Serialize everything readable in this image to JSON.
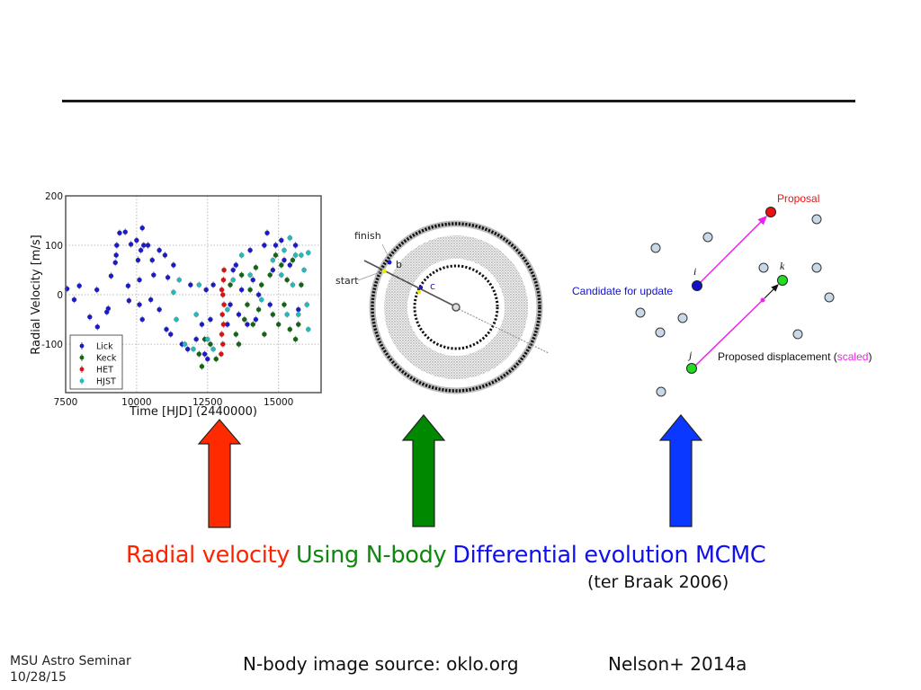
{
  "slide": {
    "caption": [
      {
        "text": "Radial velocity",
        "color": "#ff2200"
      },
      {
        "text": "Using N-body",
        "color": "#108810"
      },
      {
        "text": "Differential evolution MCMC",
        "color": "#1010ee"
      }
    ],
    "citation": "(ter Braak 2006)",
    "footer": {
      "venue_line1": "MSU Astro Seminar",
      "venue_line2": "10/28/15",
      "image_source": "N-body image source: oklo.org",
      "reference": "Nelson+ 2014a"
    },
    "arrows": [
      {
        "name": "radial-velocity",
        "color": "#ff2a00"
      },
      {
        "name": "n-body",
        "color": "#008800"
      },
      {
        "name": "mcmc",
        "color": "#0a38ff"
      }
    ]
  },
  "chart_data": {
    "type": "scatter",
    "title": "",
    "xlabel": "Time [HJD] (2440000)",
    "ylabel": "Radial Velocity [m/s]",
    "xlim": [
      7500,
      16500
    ],
    "ylim": [
      -198,
      200
    ],
    "xticks": [
      "7500",
      "10000",
      "12500",
      "15000"
    ],
    "yticks": [
      "200",
      "100",
      "0",
      "-100"
    ],
    "grid": true,
    "legend_position": "lower-left",
    "series": [
      {
        "name": "Lick",
        "color": "#1a1acc",
        "points": [
          [
            7550,
            12
          ],
          [
            7800,
            -10
          ],
          [
            7980,
            18
          ],
          [
            8350,
            -45
          ],
          [
            8600,
            10
          ],
          [
            8620,
            -65
          ],
          [
            9000,
            -28
          ],
          [
            8950,
            -35
          ],
          [
            9100,
            38
          ],
          [
            9250,
            65
          ],
          [
            9280,
            80
          ],
          [
            9300,
            100
          ],
          [
            9400,
            125
          ],
          [
            9600,
            127
          ],
          [
            9700,
            18
          ],
          [
            9730,
            -12
          ],
          [
            9800,
            102
          ],
          [
            10000,
            110
          ],
          [
            10050,
            70
          ],
          [
            10100,
            30
          ],
          [
            10100,
            -20
          ],
          [
            10150,
            90
          ],
          [
            10200,
            135
          ],
          [
            10200,
            -50
          ],
          [
            10250,
            100
          ],
          [
            10400,
            100
          ],
          [
            10500,
            -10
          ],
          [
            10550,
            70
          ],
          [
            10600,
            40
          ],
          [
            10800,
            90
          ],
          [
            10800,
            -30
          ],
          [
            11000,
            80
          ],
          [
            11050,
            -70
          ],
          [
            11100,
            35
          ],
          [
            11200,
            -80
          ],
          [
            11300,
            60
          ],
          [
            11600,
            -100
          ],
          [
            11800,
            -110
          ],
          [
            11900,
            20
          ],
          [
            12100,
            -90
          ],
          [
            12300,
            -60
          ],
          [
            12400,
            -120
          ],
          [
            12450,
            10
          ],
          [
            12500,
            -130
          ],
          [
            12600,
            -50
          ],
          [
            12700,
            20
          ],
          [
            13200,
            -60
          ],
          [
            13300,
            -20
          ],
          [
            13400,
            50
          ],
          [
            13500,
            60
          ],
          [
            13600,
            -40
          ],
          [
            13700,
            10
          ],
          [
            13900,
            -60
          ],
          [
            14000,
            90
          ],
          [
            14100,
            30
          ],
          [
            14200,
            -50
          ],
          [
            14300,
            0
          ],
          [
            14500,
            100
          ],
          [
            14600,
            125
          ],
          [
            14700,
            -20
          ],
          [
            14800,
            50
          ],
          [
            14900,
            100
          ],
          [
            15100,
            110
          ],
          [
            15200,
            70
          ],
          [
            15400,
            60
          ],
          [
            15600,
            100
          ],
          [
            15700,
            -30
          ]
        ]
      },
      {
        "name": "Keck",
        "color": "#116611",
        "points": [
          [
            12200,
            -120
          ],
          [
            12300,
            -145
          ],
          [
            12400,
            -90
          ],
          [
            12600,
            -100
          ],
          [
            12800,
            -130
          ],
          [
            13300,
            20
          ],
          [
            13500,
            -80
          ],
          [
            13600,
            -100
          ],
          [
            13700,
            40
          ],
          [
            13800,
            -50
          ],
          [
            13900,
            -20
          ],
          [
            14000,
            10
          ],
          [
            14100,
            -60
          ],
          [
            14200,
            55
          ],
          [
            14300,
            -30
          ],
          [
            14400,
            20
          ],
          [
            14500,
            -80
          ],
          [
            14700,
            40
          ],
          [
            14800,
            -40
          ],
          [
            14900,
            80
          ],
          [
            15000,
            -60
          ],
          [
            15100,
            60
          ],
          [
            15200,
            -20
          ],
          [
            15300,
            30
          ],
          [
            15400,
            -70
          ],
          [
            15500,
            70
          ],
          [
            15600,
            -90
          ],
          [
            15700,
            -60
          ],
          [
            15800,
            20
          ]
        ]
      },
      {
        "name": "HET",
        "color": "#dd1111",
        "points": [
          [
            12980,
            -120
          ],
          [
            13000,
            -80
          ],
          [
            13020,
            -40
          ],
          [
            13040,
            0
          ],
          [
            13060,
            30
          ],
          [
            13080,
            50
          ],
          [
            13000,
            10
          ],
          [
            13040,
            -100
          ],
          [
            13060,
            -60
          ],
          [
            13080,
            -20
          ]
        ]
      },
      {
        "name": "HJST",
        "color": "#22bbbb",
        "points": [
          [
            11300,
            5
          ],
          [
            11400,
            -50
          ],
          [
            11500,
            30
          ],
          [
            11700,
            -100
          ],
          [
            12000,
            -110
          ],
          [
            12100,
            -40
          ],
          [
            12200,
            20
          ],
          [
            12500,
            -90
          ],
          [
            12700,
            -110
          ],
          [
            13200,
            -30
          ],
          [
            13400,
            30
          ],
          [
            13700,
            80
          ],
          [
            14000,
            40
          ],
          [
            14400,
            -10
          ],
          [
            14800,
            70
          ],
          [
            15100,
            40
          ],
          [
            15200,
            90
          ],
          [
            15300,
            -40
          ],
          [
            15400,
            115
          ],
          [
            15500,
            20
          ],
          [
            15600,
            80
          ],
          [
            15700,
            -40
          ],
          [
            15800,
            80
          ],
          [
            15900,
            50
          ],
          [
            16000,
            -20
          ],
          [
            16050,
            -70
          ],
          [
            16050,
            85
          ]
        ]
      }
    ]
  },
  "nbody": {
    "labels": {
      "finish": "finish",
      "start": "start",
      "planet_b": "b",
      "planet_c": "c"
    }
  },
  "de_mcmc": {
    "proposal_label": "Proposal",
    "candidate_label": "Candidate for update",
    "displacement_label": "Proposed displacement (",
    "scaled_label": "scaled",
    "displacement_close": ")",
    "point_i": "i",
    "point_j": "j",
    "point_k": "k",
    "colors": {
      "proposal": "#ee1111",
      "candidate": "#1111cc",
      "pair": "#22dd22",
      "arrow": "#ee22ee",
      "population": "#c8d8e8"
    }
  }
}
